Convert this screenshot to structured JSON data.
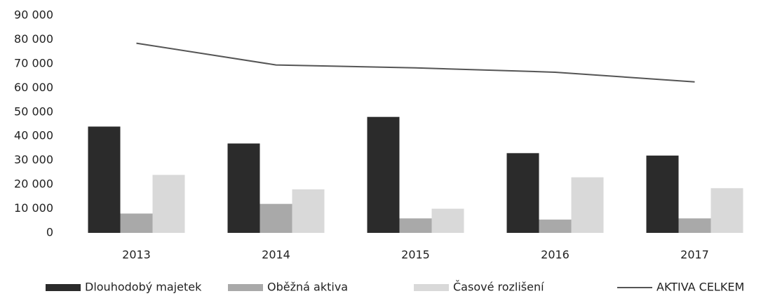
{
  "chart_data": {
    "type": "bar",
    "categories": [
      "2013",
      "2014",
      "2015",
      "2016",
      "2017"
    ],
    "series": [
      {
        "name": "Dlouhodobý majetek",
        "color": "#2b2b2b",
        "values": [
          44000,
          37000,
          48000,
          33000,
          32000
        ]
      },
      {
        "name": "Oběžná aktiva",
        "color": "#a9a9a9",
        "values": [
          8000,
          12000,
          6000,
          5500,
          6000
        ]
      },
      {
        "name": "Časové rozlišení",
        "color": "#d9d9d9",
        "values": [
          24000,
          18000,
          10000,
          23000,
          18500
        ]
      },
      {
        "name": "AKTIVA CELKEM",
        "type": "line",
        "color": "#555555",
        "values": [
          78500,
          69500,
          68300,
          66500,
          62500
        ]
      }
    ],
    "ylim": [
      0,
      90000
    ],
    "yticks": [
      0,
      {
        "value": 10000,
        "label": "10 000"
      },
      {
        "value": 20000,
        "label": "20 000"
      },
      {
        "value": 30000,
        "label": "30 000"
      },
      {
        "value": 40000,
        "label": "40 000"
      },
      {
        "value": 50000,
        "label": "50 000"
      },
      {
        "value": 60000,
        "label": "60 000"
      },
      {
        "value": 70000,
        "label": "70 000"
      },
      {
        "value": 80000,
        "label": "80 000"
      },
      {
        "value": 90000,
        "label": "90 000"
      }
    ],
    "grid": false,
    "legend": "bottom"
  }
}
